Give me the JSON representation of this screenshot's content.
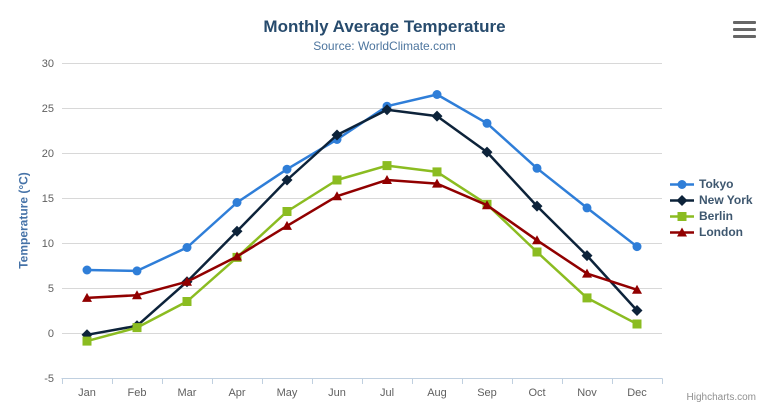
{
  "chart": {
    "credit": "Highcharts.com",
    "export_menu_icon": "hamburger-menu-icon"
  },
  "colors": {
    "title": "#274b6d",
    "subtitle": "#4d759e",
    "axis_title": "#4572a7",
    "axis_labels": "#606060",
    "grid_line": "#d8d8d8",
    "axis_line": "#c0d0e0",
    "legend_text": "#3e576f",
    "credit": "#909090",
    "menu_icon": "#666666"
  },
  "chart_data": {
    "type": "line",
    "title": "Monthly Average Temperature",
    "subtitle": "Source: WorldClimate.com",
    "xlabel": "",
    "ylabel": "Temperature (°C)",
    "ylim": [
      -5,
      30
    ],
    "yticks": [
      -5,
      0,
      5,
      10,
      15,
      20,
      25,
      30
    ],
    "grid": true,
    "legend_position": "right",
    "categories": [
      "Jan",
      "Feb",
      "Mar",
      "Apr",
      "May",
      "Jun",
      "Jul",
      "Aug",
      "Sep",
      "Oct",
      "Nov",
      "Dec"
    ],
    "series": [
      {
        "name": "Tokyo",
        "color": "#2f7ed8",
        "marker": "circle",
        "values": [
          7.0,
          6.9,
          9.5,
          14.5,
          18.2,
          21.5,
          25.2,
          26.5,
          23.3,
          18.3,
          13.9,
          9.6
        ]
      },
      {
        "name": "New York",
        "color": "#0d233a",
        "marker": "diamond",
        "values": [
          -0.2,
          0.8,
          5.7,
          11.3,
          17.0,
          22.0,
          24.8,
          24.1,
          20.1,
          14.1,
          8.6,
          2.5
        ]
      },
      {
        "name": "Berlin",
        "color": "#8bbc21",
        "marker": "square",
        "values": [
          -0.9,
          0.6,
          3.5,
          8.4,
          13.5,
          17.0,
          18.6,
          17.9,
          14.3,
          9.0,
          3.9,
          1.0
        ]
      },
      {
        "name": "London",
        "color": "#910000",
        "marker": "triangle",
        "values": [
          3.9,
          4.2,
          5.7,
          8.5,
          11.9,
          15.2,
          17.0,
          16.6,
          14.2,
          10.3,
          6.6,
          4.8
        ]
      }
    ]
  }
}
